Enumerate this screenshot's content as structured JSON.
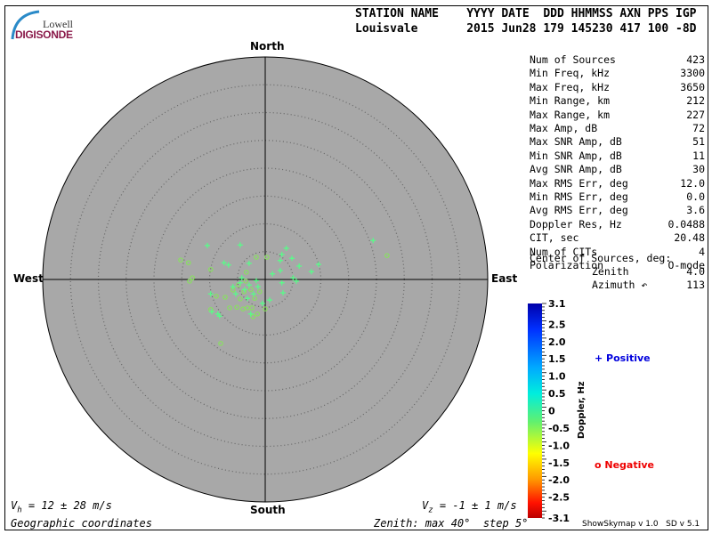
{
  "header": {
    "col_labels": "STATION NAME    YYYY DATE  DDD HHMMSS AXN PPS IGP",
    "values": "Louisvale       2015 Jun28 179 145230 417 100 -8D"
  },
  "logo": {
    "line1": "Lowell",
    "line2": "DIGISONDE"
  },
  "stats": [
    {
      "label": "Num of Sources",
      "value": "423"
    },
    {
      "label": "Min Freq, kHz",
      "value": "3300"
    },
    {
      "label": "Max Freq, kHz",
      "value": "3650"
    },
    {
      "label": "Min Range, km",
      "value": "212"
    },
    {
      "label": "Max Range, km",
      "value": "227"
    },
    {
      "label": "Max Amp, dB",
      "value": "72"
    },
    {
      "label": "Max SNR Amp, dB",
      "value": "51"
    },
    {
      "label": "Min SNR Amp, dB",
      "value": "11"
    },
    {
      "label": "Avg SNR Amp, dB",
      "value": "30"
    },
    {
      "label": "Max RMS Err, deg",
      "value": "12.0"
    },
    {
      "label": "Min RMS Err, deg",
      "value": "0.0"
    },
    {
      "label": "Avg RMS Err, deg",
      "value": "3.6"
    },
    {
      "label": "Doppler Res, Hz",
      "value": "0.0488"
    },
    {
      "label": "CIT, sec",
      "value": "20.48"
    },
    {
      "label": "Num of CITs",
      "value": "4"
    },
    {
      "label": "Polarization",
      "value": "O-mode"
    }
  ],
  "center": {
    "title": "Center of Sources, deg:",
    "zenith_label": "Zenith",
    "zenith": "4.0",
    "azimuth_label": "Azimuth ↶",
    "azimuth": "113"
  },
  "footer": {
    "vh": "= 12 ± 28 m/s",
    "vh_sym": "V",
    "vh_sub": "h",
    "vz": "= -1 ± 1 m/s",
    "vz_sym": "V",
    "vz_sub": "z",
    "coords": "Geographic coordinates",
    "zenith_info": "Zenith: max 40°  step 5°",
    "version": "ShowSkymap v 1.0   SD v 5.1"
  },
  "chart_data": {
    "type": "scatter",
    "projection": "polar skymap",
    "directions": {
      "north": "North",
      "south": "South",
      "east": "East",
      "west": "West"
    },
    "zenith_max_deg": 40,
    "zenith_step_deg": 5,
    "axes_units": "deg east / deg north of zenith",
    "colorbar": {
      "label": "Doppler, Hz",
      "range": [
        -3.1,
        3.1
      ],
      "ticks": [
        "3.1",
        "2.5",
        "2.0",
        "1.5",
        "1.0",
        "0.5",
        "0",
        "-0.5",
        "-1.0",
        "-1.5",
        "-2.0",
        "-2.5",
        "-3.1"
      ]
    },
    "legend": {
      "positive": "Positive",
      "negative": "Negative",
      "positive_color": "#0000dd",
      "negative_color": "#ee0000"
    },
    "positive_points": [
      [
        -10.4,
        6.1
      ],
      [
        -4.5,
        6.2
      ],
      [
        3.8,
        5.6
      ],
      [
        3.0,
        4.5
      ],
      [
        4.8,
        3.8
      ],
      [
        2.7,
        3.4
      ],
      [
        6.1,
        2.4
      ],
      [
        8.3,
        1.4
      ],
      [
        9.6,
        2.7
      ],
      [
        2.7,
        1.6
      ],
      [
        1.3,
        1.0
      ],
      [
        3.0,
        -0.6
      ],
      [
        5.0,
        0.3
      ],
      [
        5.6,
        -0.3
      ],
      [
        3.2,
        -2.4
      ],
      [
        0.8,
        -3.7
      ],
      [
        -0.5,
        -4.3
      ],
      [
        -2.6,
        -6.2
      ],
      [
        -8.2,
        -6.6
      ],
      [
        -9.6,
        -5.8
      ],
      [
        -9.8,
        -2.6
      ],
      [
        -7.4,
        3.0
      ],
      [
        -2.9,
        2.9
      ],
      [
        -6.6,
        2.6
      ],
      [
        19.4,
        7.0
      ],
      [
        -8.5,
        -6.2
      ],
      [
        -4.5,
        -0.6
      ],
      [
        -3.7,
        -1.8
      ],
      [
        -2.9,
        -1.0
      ],
      [
        -2.1,
        -2.6
      ],
      [
        -5.3,
        -2.6
      ],
      [
        -1.3,
        -1.3
      ],
      [
        -4.2,
        0.3
      ],
      [
        -3.2,
        -3.4
      ],
      [
        -5.8,
        -1.3
      ],
      [
        -1.6,
        -0.2
      ]
    ],
    "negative_points": [
      [
        -15.2,
        3.5
      ],
      [
        -13.8,
        3.0
      ],
      [
        -13.1,
        0.3
      ],
      [
        -13.6,
        -0.3
      ],
      [
        -9.8,
        1.8
      ],
      [
        -1.6,
        4.0
      ],
      [
        0.3,
        4.0
      ],
      [
        -3.4,
        1.3
      ],
      [
        -8.8,
        -3.0
      ],
      [
        -7.2,
        -3.2
      ],
      [
        -6.4,
        -5.1
      ],
      [
        -5.1,
        -5.0
      ],
      [
        -4.0,
        -5.3
      ],
      [
        -3.2,
        -5.1
      ],
      [
        -2.4,
        -5.1
      ],
      [
        -1.4,
        -6.2
      ],
      [
        -2.2,
        -6.7
      ],
      [
        0,
        -5.3
      ],
      [
        -9.8,
        -5.4
      ],
      [
        -8.0,
        -11.5
      ],
      [
        21.9,
        4.3
      ],
      [
        -4.8,
        -1.0
      ],
      [
        -3.8,
        -2.2
      ],
      [
        -2.6,
        -1.8
      ],
      [
        -5.8,
        -1.9
      ],
      [
        -1.9,
        -3.4
      ],
      [
        -4.5,
        -3.5
      ],
      [
        -1.0,
        -2.2
      ],
      [
        -3.5,
        -0.3
      ]
    ],
    "positive_color": "#55ff88",
    "negative_color": "#88e060"
  }
}
